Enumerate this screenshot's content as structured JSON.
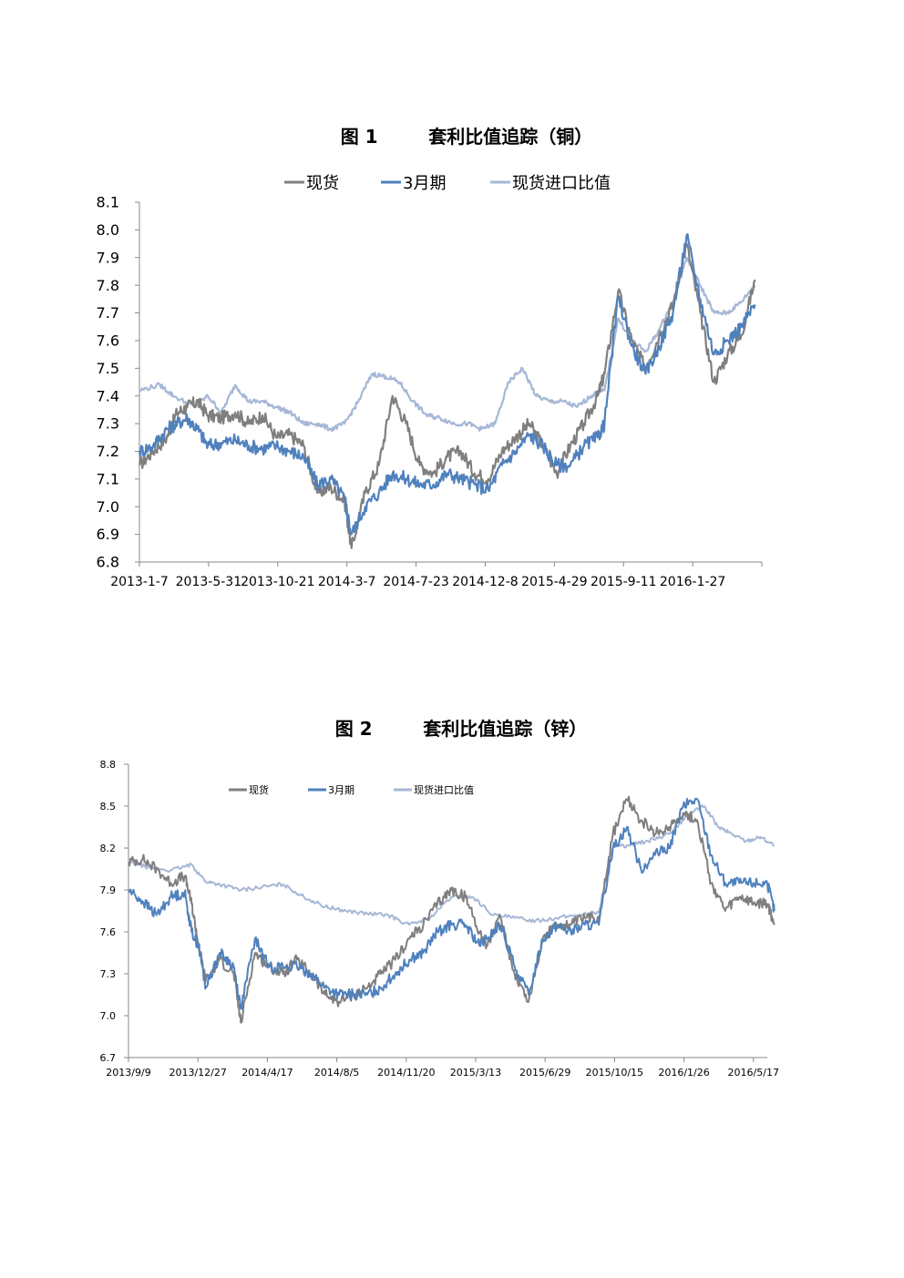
{
  "chart_data": [
    {
      "type": "line",
      "title": "图 1        套利比值追踪（铜）",
      "legend": [
        "现货",
        "3月期",
        "现货进口比值"
      ],
      "legend_placement": "top-center",
      "colors": {
        "spot": "#7f7f7f",
        "m3": "#4f81bd",
        "import": "#a6b7d6"
      },
      "ylim": [
        6.8,
        8.1
      ],
      "yticks": [
        "6.8",
        "6.9",
        "7.0",
        "7.1",
        "7.2",
        "7.3",
        "7.4",
        "7.5",
        "7.6",
        "7.7",
        "7.8",
        "7.9",
        "8.0",
        "8.1"
      ],
      "xticks": [
        "2013-1-7",
        "2013-5-31",
        "2013-10-21",
        "2014-3-7",
        "2014-7-23",
        "2014-12-8",
        "2015-4-29",
        "2015-9-11",
        "2016-1-27"
      ],
      "grid": false,
      "series": [
        {
          "name": "现货",
          "x": [
            0,
            0.2,
            0.4,
            0.55,
            0.7,
            0.85,
            1,
            1.2,
            1.4,
            1.6,
            1.8,
            2,
            2.2,
            2.4,
            2.6,
            2.8,
            3,
            3.1,
            3.3,
            3.5,
            3.7,
            3.9,
            4.1,
            4.3,
            4.5,
            4.7,
            4.9,
            5.1,
            5.3,
            5.5,
            5.7,
            5.9,
            6.1,
            6.3,
            6.5,
            6.7,
            6.8,
            7,
            7.2,
            7.4,
            7.6,
            7.8,
            8,
            8.2,
            8.4,
            8.6,
            8.8,
            9
          ],
          "values": [
            7.15,
            7.2,
            7.25,
            7.34,
            7.36,
            7.38,
            7.33,
            7.32,
            7.34,
            7.3,
            7.33,
            7.25,
            7.26,
            7.22,
            7.05,
            7.07,
            7.02,
            6.85,
            7.05,
            7.15,
            7.4,
            7.3,
            7.15,
            7.12,
            7.18,
            7.2,
            7.12,
            7.1,
            7.2,
            7.25,
            7.3,
            7.22,
            7.12,
            7.22,
            7.3,
            7.4,
            7.48,
            7.78,
            7.6,
            7.5,
            7.62,
            7.73,
            7.95,
            7.7,
            7.45,
            7.55,
            7.62,
            7.82
          ]
        },
        {
          "name": "3月期",
          "x": [
            0,
            0.2,
            0.4,
            0.55,
            0.7,
            0.85,
            1,
            1.2,
            1.4,
            1.6,
            1.8,
            2,
            2.2,
            2.4,
            2.6,
            2.8,
            3,
            3.1,
            3.3,
            3.5,
            3.7,
            3.9,
            4.1,
            4.3,
            4.5,
            4.7,
            4.9,
            5.1,
            5.3,
            5.5,
            5.7,
            5.9,
            6.1,
            6.3,
            6.5,
            6.7,
            6.8,
            7,
            7.2,
            7.4,
            7.6,
            7.8,
            8,
            8.2,
            8.4,
            8.6,
            8.8,
            9
          ],
          "values": [
            7.2,
            7.22,
            7.28,
            7.3,
            7.32,
            7.28,
            7.22,
            7.23,
            7.24,
            7.22,
            7.21,
            7.22,
            7.2,
            7.18,
            7.08,
            7.1,
            7.03,
            6.9,
            7.0,
            7.05,
            7.12,
            7.1,
            7.08,
            7.08,
            7.12,
            7.1,
            7.08,
            7.06,
            7.15,
            7.2,
            7.26,
            7.22,
            7.15,
            7.15,
            7.22,
            7.25,
            7.3,
            7.76,
            7.58,
            7.48,
            7.58,
            7.7,
            7.98,
            7.75,
            7.55,
            7.6,
            7.65,
            7.73
          ]
        },
        {
          "name": "现货进口比值",
          "x": [
            0,
            0.3,
            0.5,
            0.8,
            1,
            1.2,
            1.4,
            1.6,
            1.8,
            2,
            2.2,
            2.4,
            2.6,
            2.8,
            3,
            3.2,
            3.4,
            3.6,
            3.8,
            4,
            4.2,
            4.4,
            4.6,
            4.8,
            5,
            5.2,
            5.4,
            5.6,
            5.8,
            6,
            6.2,
            6.4,
            6.6,
            6.8,
            7,
            7.2,
            7.4,
            7.6,
            7.8,
            8,
            8.2,
            8.4,
            8.6,
            8.8,
            9
          ],
          "values": [
            7.42,
            7.44,
            7.4,
            7.36,
            7.4,
            7.34,
            7.44,
            7.38,
            7.38,
            7.36,
            7.34,
            7.3,
            7.3,
            7.28,
            7.3,
            7.38,
            7.48,
            7.47,
            7.45,
            7.38,
            7.33,
            7.32,
            7.3,
            7.3,
            7.28,
            7.3,
            7.45,
            7.5,
            7.4,
            7.38,
            7.38,
            7.36,
            7.4,
            7.42,
            7.68,
            7.6,
            7.56,
            7.64,
            7.74,
            7.9,
            7.8,
            7.7,
            7.7,
            7.74,
            7.8
          ]
        }
      ]
    },
    {
      "type": "line",
      "title": "图 2        套利比值追踪（锌）",
      "legend": [
        "现货",
        "3月期",
        "现货进口比值"
      ],
      "legend_placement": "top-left",
      "colors": {
        "spot": "#7f7f7f",
        "m3": "#4f81bd",
        "import": "#a6b7d6"
      },
      "ylim": [
        6.7,
        8.8
      ],
      "yticks": [
        "6.7",
        "7.0",
        "7.3",
        "7.6",
        "7.9",
        "8.2",
        "8.5",
        "8.8"
      ],
      "xticks": [
        "2013/9/9",
        "2013/12/27",
        "2014/4/17",
        "2014/8/5",
        "2014/11/20",
        "2015/3/13",
        "2015/6/29",
        "2015/10/15",
        "2016/1/26",
        "2016/5/17"
      ],
      "grid": false,
      "series": [
        {
          "name": "现货",
          "x": [
            0,
            0.2,
            0.4,
            0.6,
            0.8,
            0.9,
            1,
            1.1,
            1.3,
            1.5,
            1.6,
            1.8,
            2,
            2.2,
            2.4,
            2.6,
            2.8,
            3,
            3.2,
            3.4,
            3.6,
            3.8,
            4,
            4.2,
            4.4,
            4.6,
            4.8,
            5,
            5.1,
            5.3,
            5.5,
            5.7,
            5.9,
            6.1,
            6.3,
            6.5,
            6.7,
            6.9,
            7.1,
            7.3,
            7.5,
            7.7,
            7.9,
            8.1,
            8.3,
            8.5,
            8.7,
            8.9,
            9.1,
            9.2
          ],
          "values": [
            8.1,
            8.12,
            8.05,
            7.95,
            8.0,
            7.8,
            7.5,
            7.25,
            7.4,
            7.3,
            6.95,
            7.45,
            7.35,
            7.3,
            7.4,
            7.3,
            7.15,
            7.1,
            7.15,
            7.2,
            7.3,
            7.4,
            7.55,
            7.65,
            7.8,
            7.9,
            7.85,
            7.6,
            7.5,
            7.7,
            7.3,
            7.1,
            7.55,
            7.65,
            7.65,
            7.7,
            7.7,
            8.3,
            8.55,
            8.4,
            8.3,
            8.35,
            8.45,
            8.4,
            7.95,
            7.75,
            7.85,
            7.8,
            7.8,
            7.65
          ]
        },
        {
          "name": "3月期",
          "x": [
            0,
            0.2,
            0.4,
            0.6,
            0.8,
            0.9,
            1,
            1.1,
            1.3,
            1.5,
            1.6,
            1.8,
            2,
            2.2,
            2.4,
            2.6,
            2.8,
            3,
            3.2,
            3.4,
            3.6,
            3.8,
            4,
            4.2,
            4.4,
            4.6,
            4.8,
            5,
            5.1,
            5.3,
            5.5,
            5.7,
            5.9,
            6.1,
            6.3,
            6.5,
            6.7,
            6.9,
            7.1,
            7.3,
            7.5,
            7.7,
            7.9,
            8.1,
            8.3,
            8.5,
            8.7,
            8.9,
            9.1,
            9.2
          ],
          "values": [
            7.9,
            7.82,
            7.72,
            7.85,
            7.88,
            7.6,
            7.5,
            7.2,
            7.45,
            7.35,
            7.05,
            7.55,
            7.35,
            7.35,
            7.35,
            7.3,
            7.2,
            7.15,
            7.15,
            7.15,
            7.2,
            7.3,
            7.4,
            7.45,
            7.6,
            7.65,
            7.65,
            7.5,
            7.55,
            7.65,
            7.35,
            7.15,
            7.55,
            7.65,
            7.6,
            7.65,
            7.65,
            8.2,
            8.35,
            8.05,
            8.15,
            8.2,
            8.5,
            8.55,
            8.15,
            7.95,
            7.95,
            7.95,
            7.95,
            7.75
          ]
        },
        {
          "name": "现货进口比值",
          "x": [
            0,
            0.3,
            0.6,
            0.9,
            1.1,
            1.3,
            1.6,
            1.9,
            2.2,
            2.5,
            2.8,
            3.1,
            3.4,
            3.7,
            4,
            4.3,
            4.6,
            4.9,
            5.2,
            5.5,
            5.8,
            6.1,
            6.4,
            6.7,
            6.9,
            7.1,
            7.4,
            7.7,
            8,
            8.2,
            8.4,
            8.6,
            8.8,
            9,
            9.2
          ],
          "values": [
            8.1,
            8.06,
            8.04,
            8.08,
            7.96,
            7.94,
            7.9,
            7.92,
            7.94,
            7.85,
            7.78,
            7.75,
            7.73,
            7.72,
            7.65,
            7.7,
            7.85,
            7.85,
            7.72,
            7.7,
            7.68,
            7.7,
            7.72,
            7.74,
            8.2,
            8.22,
            8.25,
            8.3,
            8.45,
            8.5,
            8.35,
            8.3,
            8.25,
            8.28,
            8.22
          ]
        }
      ]
    }
  ]
}
